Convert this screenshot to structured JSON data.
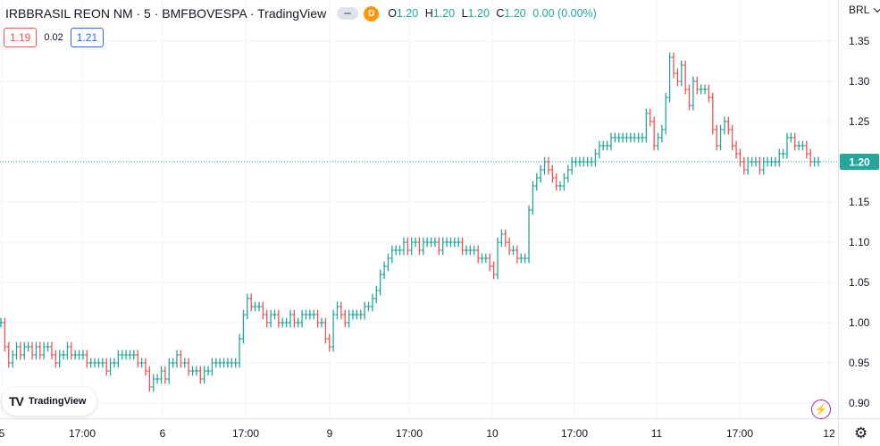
{
  "header": {
    "title": "IRBBRASIL REON NM · 5 · BMFBOVESPA · TradingView",
    "badge": "D",
    "ohlc": [
      {
        "key": "O",
        "value": "1.20"
      },
      {
        "key": "H",
        "value": "1.20"
      },
      {
        "key": "L",
        "value": "1.20"
      },
      {
        "key": "C",
        "value": "1.20"
      },
      {
        "key": "",
        "value": "0.00 (0.00%)"
      }
    ]
  },
  "quote": {
    "bid": "1.19",
    "spread": "0.02",
    "ask": "1.21"
  },
  "currency": "BRL",
  "watermark": "TradingView",
  "colors": {
    "up": "#26a69a",
    "down": "#ef5350",
    "grid": "#f0f3fa",
    "last_price_bg": "#26a69a"
  },
  "chart_data": {
    "type": "ohlc",
    "symbol": "IRBBRASIL REON NM",
    "interval": "5",
    "y_ticks": [
      "1.35",
      "1.30",
      "1.25",
      "1.20",
      "1.15",
      "1.10",
      "1.05",
      "1.00",
      "0.95",
      "0.90"
    ],
    "x_ticks": [
      "5",
      "17:00",
      "6",
      "17:00",
      "9",
      "17:00",
      "10",
      "17:00",
      "11",
      "17:00",
      "12"
    ],
    "ylim": [
      0.87,
      1.375
    ],
    "last_price": "1.20",
    "grid": true,
    "series_close": [
      1.0,
      0.97,
      0.95,
      0.96,
      0.97,
      0.96,
      0.97,
      0.97,
      0.96,
      0.97,
      0.96,
      0.97,
      0.97,
      0.96,
      0.95,
      0.96,
      0.96,
      0.97,
      0.96,
      0.96,
      0.96,
      0.96,
      0.95,
      0.95,
      0.95,
      0.95,
      0.95,
      0.94,
      0.95,
      0.95,
      0.96,
      0.96,
      0.96,
      0.96,
      0.96,
      0.95,
      0.95,
      0.94,
      0.92,
      0.93,
      0.93,
      0.94,
      0.93,
      0.95,
      0.95,
      0.96,
      0.95,
      0.95,
      0.94,
      0.94,
      0.94,
      0.93,
      0.94,
      0.94,
      0.95,
      0.95,
      0.95,
      0.95,
      0.95,
      0.95,
      0.95,
      0.98,
      1.01,
      1.03,
      1.02,
      1.02,
      1.02,
      1.01,
      1.0,
      1.01,
      1.01,
      1.0,
      1.0,
      1.0,
      1.01,
      1.0,
      1.0,
      1.01,
      1.01,
      1.01,
      1.01,
      1.0,
      1.0,
      0.98,
      0.97,
      1.01,
      1.02,
      1.01,
      1.0,
      1.01,
      1.01,
      1.01,
      1.01,
      1.02,
      1.02,
      1.03,
      1.04,
      1.06,
      1.07,
      1.08,
      1.09,
      1.09,
      1.09,
      1.1,
      1.09,
      1.1,
      1.1,
      1.09,
      1.1,
      1.1,
      1.1,
      1.1,
      1.09,
      1.1,
      1.1,
      1.1,
      1.1,
      1.1,
      1.09,
      1.09,
      1.09,
      1.09,
      1.08,
      1.08,
      1.08,
      1.07,
      1.06,
      1.1,
      1.11,
      1.1,
      1.09,
      1.09,
      1.08,
      1.08,
      1.08,
      1.14,
      1.17,
      1.18,
      1.19,
      1.2,
      1.19,
      1.18,
      1.17,
      1.17,
      1.18,
      1.19,
      1.2,
      1.2,
      1.2,
      1.2,
      1.2,
      1.2,
      1.21,
      1.22,
      1.22,
      1.22,
      1.23,
      1.23,
      1.23,
      1.23,
      1.23,
      1.23,
      1.23,
      1.23,
      1.23,
      1.26,
      1.25,
      1.22,
      1.23,
      1.24,
      1.28,
      1.33,
      1.31,
      1.3,
      1.32,
      1.29,
      1.27,
      1.3,
      1.29,
      1.29,
      1.29,
      1.28,
      1.24,
      1.22,
      1.24,
      1.25,
      1.24,
      1.22,
      1.21,
      1.2,
      1.19,
      1.2,
      1.2,
      1.2,
      1.19,
      1.2,
      1.2,
      1.2,
      1.2,
      1.21,
      1.21,
      1.23,
      1.23,
      1.22,
      1.22,
      1.22,
      1.21,
      1.2,
      1.2,
      1.2
    ]
  }
}
